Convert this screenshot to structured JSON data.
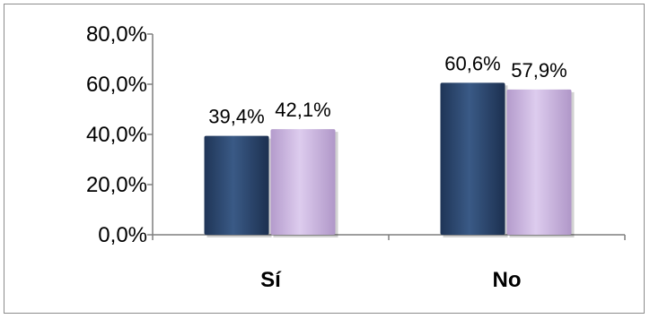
{
  "chart_data": {
    "type": "bar",
    "categories": [
      "Sí",
      "No"
    ],
    "series": [
      {
        "values": [
          39.4,
          60.6
        ],
        "color": "#2e4a72"
      },
      {
        "values": [
          42.1,
          57.9
        ],
        "color": "#c9b3de"
      }
    ],
    "data_labels": [
      [
        "39,4%",
        "60,6%"
      ],
      [
        "42,1%",
        "57,9%"
      ]
    ],
    "yticks": [
      "0,0%",
      "20,0%",
      "40,0%",
      "60,0%",
      "80,0%"
    ],
    "ylim": [
      0,
      80
    ],
    "grid": false,
    "legend": "none"
  }
}
